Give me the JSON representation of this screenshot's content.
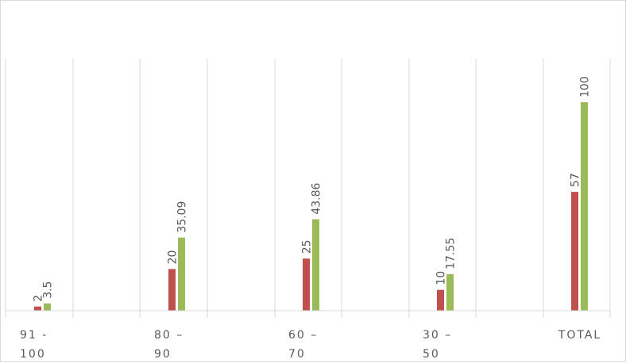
{
  "chart_data": {
    "type": "bar",
    "title": "",
    "xlabel": "",
    "ylabel": "",
    "ylim": [
      0,
      120
    ],
    "grid": "vertical-category-dividers",
    "legend": "none",
    "categories": [
      [
        "91 -",
        "100"
      ],
      [
        "80 –",
        "90"
      ],
      [
        "60 –",
        "70"
      ],
      [
        "30 –",
        "50"
      ],
      [
        "TOTAL"
      ]
    ],
    "series": [
      {
        "color": "#c0504d",
        "values": [
          2,
          20,
          25,
          10,
          57
        ],
        "labels": [
          "2",
          "20",
          "25",
          "10",
          "57"
        ]
      },
      {
        "color": "#9bbb59",
        "values": [
          3.5,
          35.09,
          43.86,
          17.55,
          100
        ],
        "labels": [
          "3.5",
          "35.09",
          "43.86",
          "17.55",
          "100"
        ]
      }
    ]
  }
}
